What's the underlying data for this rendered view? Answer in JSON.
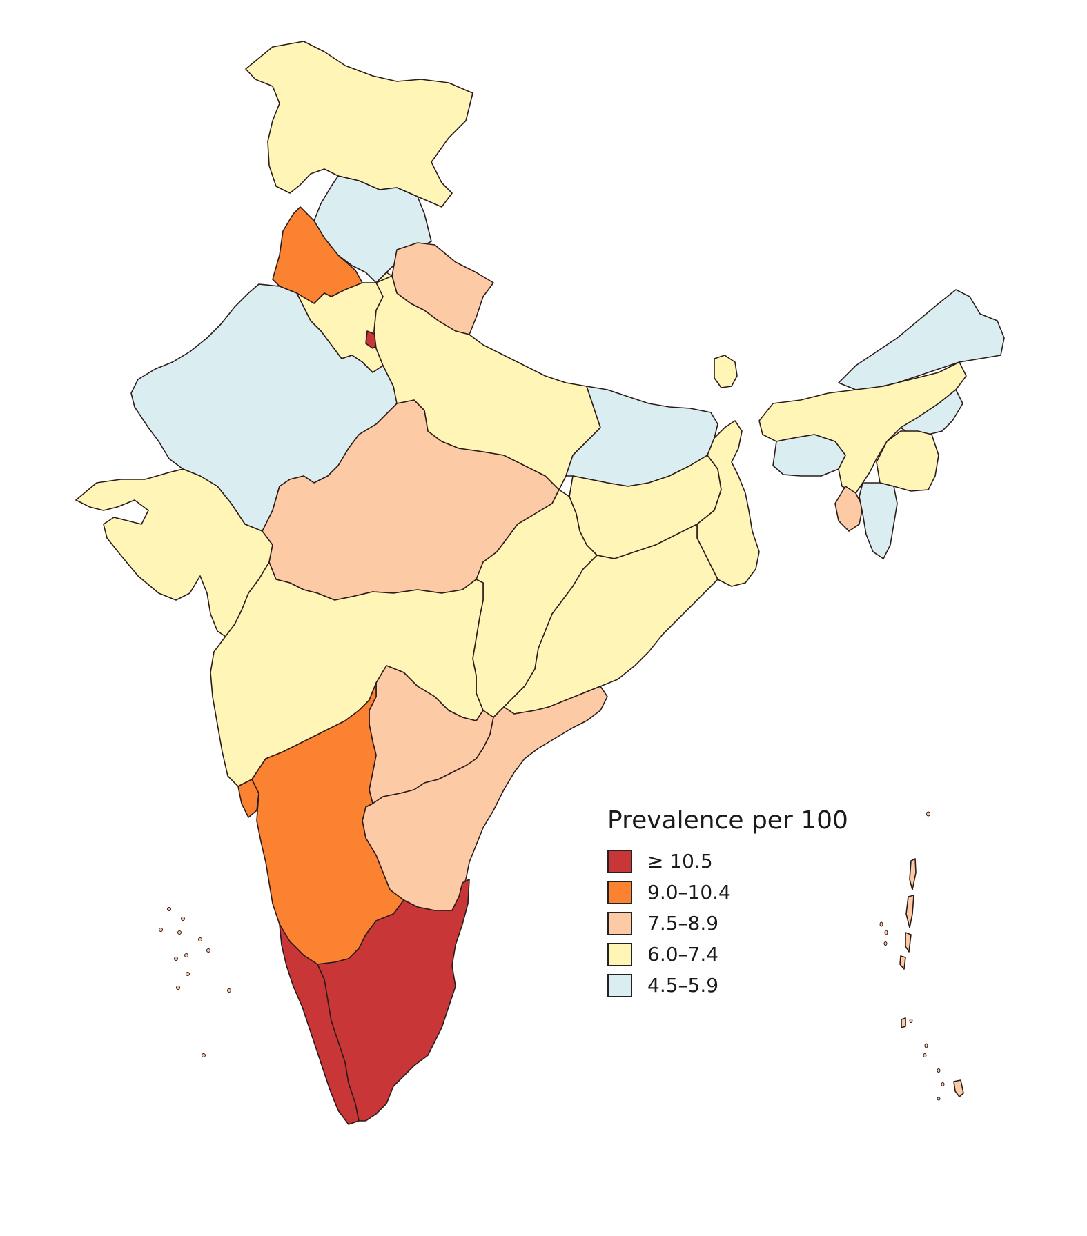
{
  "legend": {
    "title": "Prevalence per 100",
    "classes": [
      {
        "label": "≥ 10.5",
        "color": "#c93638"
      },
      {
        "label": "9.0–10.4",
        "color": "#fb8230"
      },
      {
        "label": "7.5–8.9",
        "color": "#fdcaa6"
      },
      {
        "label": "6.0–7.4",
        "color": "#fef5b6"
      },
      {
        "label": "4.5–5.9",
        "color": "#daeef2"
      }
    ]
  }
}
